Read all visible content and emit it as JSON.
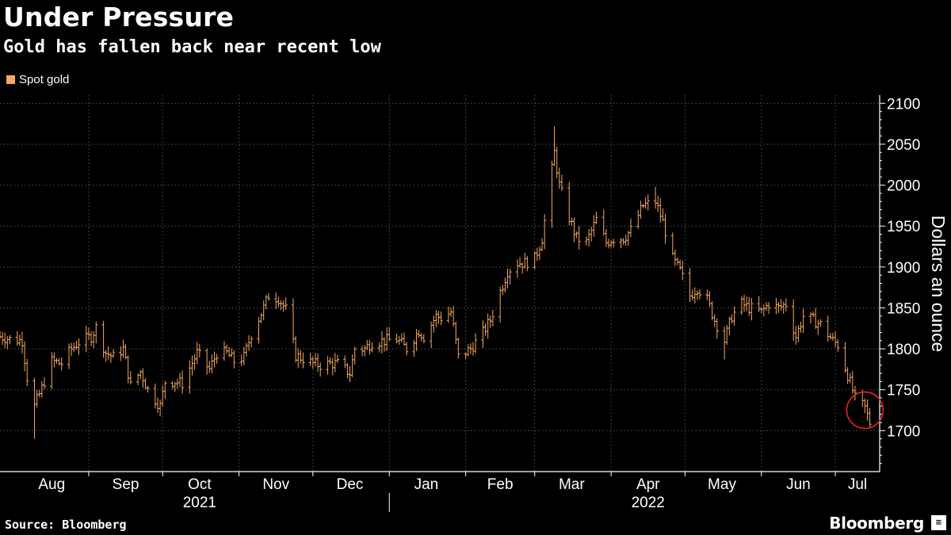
{
  "header": {
    "title": "Under Pressure",
    "subtitle": "Gold has fallen back near recent low"
  },
  "footer": {
    "source": "Source: Bloomberg",
    "brand": "Bloomberg",
    "brand_icon": "terminal-icon"
  },
  "colors": {
    "background": "#000000",
    "series": "#F7A85D",
    "grid": "#555555",
    "axis": "#FFFFFF",
    "annotation": "#E8202A"
  },
  "chart_data": {
    "type": "ohlc",
    "title": "Under Pressure",
    "subtitle": "Gold has fallen back near recent low",
    "ylabel": "Dollars an ounce",
    "xlabel": "",
    "ylim": [
      1650,
      2110
    ],
    "y_ticks": [
      1700,
      1750,
      1800,
      1850,
      1900,
      1950,
      2000,
      2050,
      2100
    ],
    "y_axis_side": "right",
    "grid": true,
    "legend": {
      "position": "top-left",
      "entries": [
        "Spot gold"
      ]
    },
    "series": [
      {
        "name": "Spot gold",
        "anchors": [
          [
            "2021-07-26",
            1815
          ],
          [
            "2021-07-30",
            1812
          ],
          [
            "2021-08-04",
            1810
          ],
          [
            "2021-08-06",
            1765
          ],
          [
            "2021-08-09",
            1730
          ],
          [
            "2021-08-12",
            1752
          ],
          [
            "2021-08-16",
            1785
          ],
          [
            "2021-08-20",
            1782
          ],
          [
            "2021-08-24",
            1800
          ],
          [
            "2021-08-27",
            1808
          ],
          [
            "2021-09-01",
            1815
          ],
          [
            "2021-09-03",
            1826
          ],
          [
            "2021-09-07",
            1795
          ],
          [
            "2021-09-10",
            1790
          ],
          [
            "2021-09-14",
            1800
          ],
          [
            "2021-09-17",
            1755
          ],
          [
            "2021-09-21",
            1772
          ],
          [
            "2021-09-24",
            1750
          ],
          [
            "2021-09-29",
            1730
          ],
          [
            "2021-10-01",
            1760
          ],
          [
            "2021-10-05",
            1760
          ],
          [
            "2021-10-08",
            1758
          ],
          [
            "2021-10-14",
            1795
          ],
          [
            "2021-10-19",
            1775
          ],
          [
            "2021-10-22",
            1795
          ],
          [
            "2021-10-26",
            1795
          ],
          [
            "2021-10-29",
            1785
          ],
          [
            "2021-11-02",
            1790
          ],
          [
            "2021-11-05",
            1818
          ],
          [
            "2021-11-10",
            1850
          ],
          [
            "2021-11-12",
            1865
          ],
          [
            "2021-11-16",
            1862
          ],
          [
            "2021-11-19",
            1848
          ],
          [
            "2021-11-23",
            1792
          ],
          [
            "2021-11-26",
            1788
          ],
          [
            "2021-11-30",
            1782
          ],
          [
            "2021-12-03",
            1780
          ],
          [
            "2021-12-07",
            1782
          ],
          [
            "2021-12-10",
            1782
          ],
          [
            "2021-12-15",
            1770
          ],
          [
            "2021-12-17",
            1800
          ],
          [
            "2021-12-21",
            1800
          ],
          [
            "2021-12-24",
            1808
          ],
          [
            "2021-12-29",
            1810
          ],
          [
            "2022-01-03",
            1812
          ],
          [
            "2022-01-07",
            1800
          ],
          [
            "2022-01-12",
            1822
          ],
          [
            "2022-01-14",
            1815
          ],
          [
            "2022-01-19",
            1840
          ],
          [
            "2022-01-21",
            1838
          ],
          [
            "2022-01-25",
            1845
          ],
          [
            "2022-01-28",
            1790
          ],
          [
            "2022-02-02",
            1800
          ],
          [
            "2022-02-07",
            1820
          ],
          [
            "2022-02-10",
            1835
          ],
          [
            "2022-02-14",
            1870
          ],
          [
            "2022-02-17",
            1895
          ],
          [
            "2022-02-21",
            1905
          ],
          [
            "2022-02-24",
            1905
          ],
          [
            "2022-02-28",
            1910
          ],
          [
            "2022-03-03",
            1935
          ],
          [
            "2022-03-08",
            2040
          ],
          [
            "2022-03-10",
            2000
          ],
          [
            "2022-03-14",
            1960
          ],
          [
            "2022-03-17",
            1935
          ],
          [
            "2022-03-21",
            1930
          ],
          [
            "2022-03-25",
            1958
          ],
          [
            "2022-03-29",
            1930
          ],
          [
            "2022-04-01",
            1935
          ],
          [
            "2022-04-05",
            1935
          ],
          [
            "2022-04-08",
            1945
          ],
          [
            "2022-04-13",
            1975
          ],
          [
            "2022-04-18",
            1980
          ],
          [
            "2022-04-21",
            1955
          ],
          [
            "2022-04-25",
            1910
          ],
          [
            "2022-04-28",
            1895
          ],
          [
            "2022-05-02",
            1865
          ],
          [
            "2022-05-05",
            1875
          ],
          [
            "2022-05-09",
            1860
          ],
          [
            "2022-05-12",
            1835
          ],
          [
            "2022-05-16",
            1810
          ],
          [
            "2022-05-19",
            1840
          ],
          [
            "2022-05-23",
            1855
          ],
          [
            "2022-05-26",
            1850
          ],
          [
            "2022-05-31",
            1845
          ],
          [
            "2022-06-03",
            1855
          ],
          [
            "2022-06-07",
            1850
          ],
          [
            "2022-06-10",
            1855
          ],
          [
            "2022-06-14",
            1815
          ],
          [
            "2022-06-17",
            1840
          ],
          [
            "2022-06-21",
            1835
          ],
          [
            "2022-06-24",
            1830
          ],
          [
            "2022-06-29",
            1810
          ],
          [
            "2022-07-01",
            1805
          ],
          [
            "2022-07-05",
            1768
          ],
          [
            "2022-07-08",
            1740
          ],
          [
            "2022-07-12",
            1728
          ],
          [
            "2022-07-14",
            1710
          ]
        ]
      }
    ],
    "x_ticks": [
      {
        "label": "Aug",
        "date": "2021-08-16"
      },
      {
        "label": "Sep",
        "date": "2021-09-15"
      },
      {
        "label": "Oct",
        "date": "2021-10-15"
      },
      {
        "label": "Nov",
        "date": "2021-11-15"
      },
      {
        "label": "Dec",
        "date": "2021-12-15"
      },
      {
        "label": "Jan",
        "date": "2022-01-15"
      },
      {
        "label": "Feb",
        "date": "2022-02-14"
      },
      {
        "label": "Mar",
        "date": "2022-03-15"
      },
      {
        "label": "Apr",
        "date": "2022-04-15"
      },
      {
        "label": "May",
        "date": "2022-05-15"
      },
      {
        "label": "Jun",
        "date": "2022-06-15"
      },
      {
        "label": "Jul",
        "date": "2022-07-09"
      }
    ],
    "month_boundaries": [
      "2021-08-31",
      "2021-09-30",
      "2021-10-31",
      "2021-11-30",
      "2021-12-31",
      "2022-01-31",
      "2022-02-28",
      "2022-03-31",
      "2022-04-30",
      "2022-05-31",
      "2022-06-30"
    ],
    "x_range": [
      "2021-07-26",
      "2022-07-18"
    ],
    "year_labels": [
      {
        "label": "2021",
        "date": "2021-10-15"
      },
      {
        "label": "2022",
        "date": "2022-04-15"
      }
    ],
    "annotation": {
      "type": "circle",
      "date": "2022-07-12",
      "value": 1725,
      "note": "recent low"
    }
  }
}
